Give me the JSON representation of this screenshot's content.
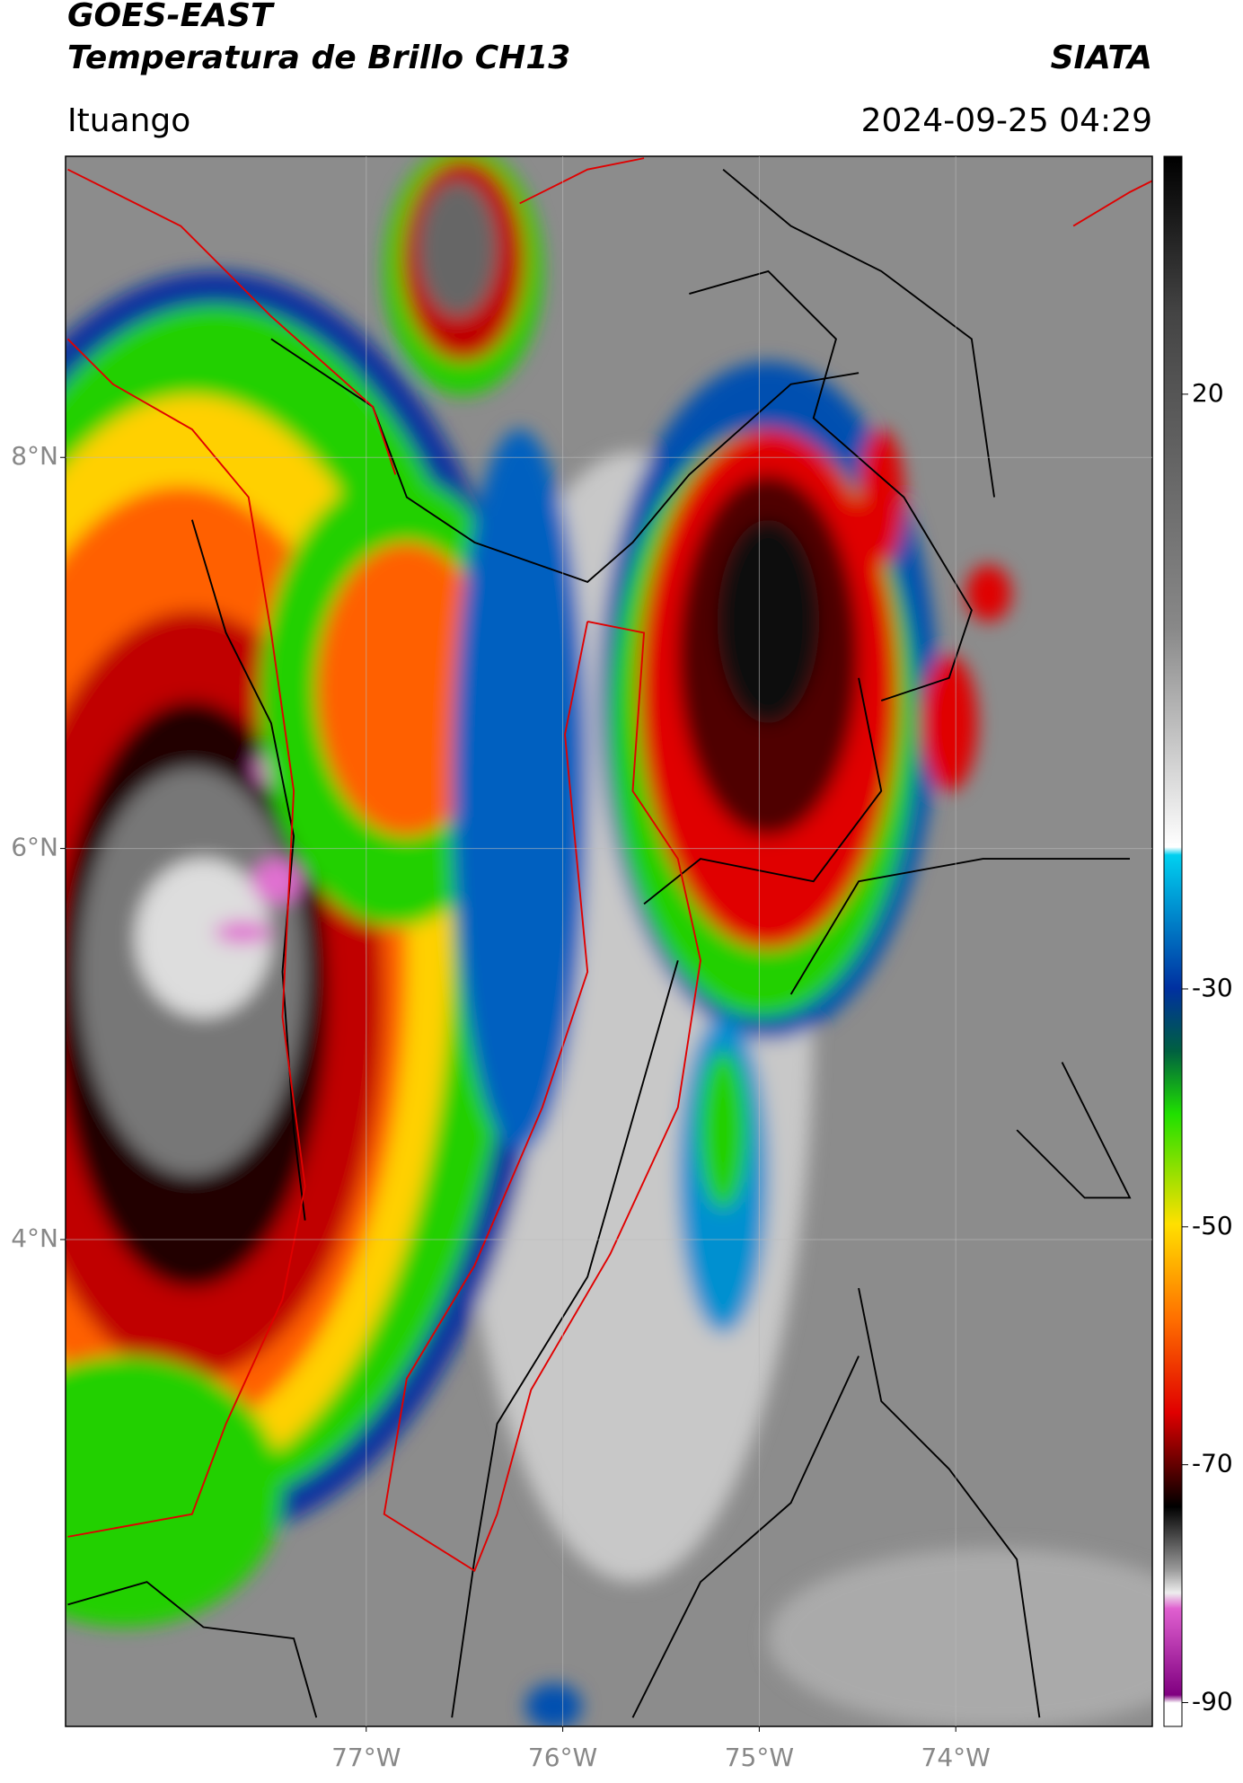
{
  "header": {
    "title": "GOES-EAST",
    "subtitle": "Temperatura de Brillo CH13",
    "source": "SIATA",
    "location": "Ituango",
    "datetime": "2024-09-25 04:29"
  },
  "chart_data": {
    "type": "map",
    "xlim": [
      -78.53,
      -73.0
    ],
    "ylim": [
      1.51,
      9.54
    ],
    "xticks": [
      {
        "value": -77,
        "label": "77°W"
      },
      {
        "value": -76,
        "label": "76°W"
      },
      {
        "value": -75,
        "label": "75°W"
      },
      {
        "value": -74,
        "label": "74°W"
      }
    ],
    "yticks": [
      {
        "value": 4,
        "label": "4°N"
      },
      {
        "value": 6,
        "label": "6°N"
      },
      {
        "value": 8,
        "label": "8°N"
      }
    ],
    "grid": true,
    "colorbar": {
      "lim": [
        -92,
        40
      ],
      "ticks": [
        20,
        -30,
        -50,
        -70,
        -90
      ]
    }
  }
}
